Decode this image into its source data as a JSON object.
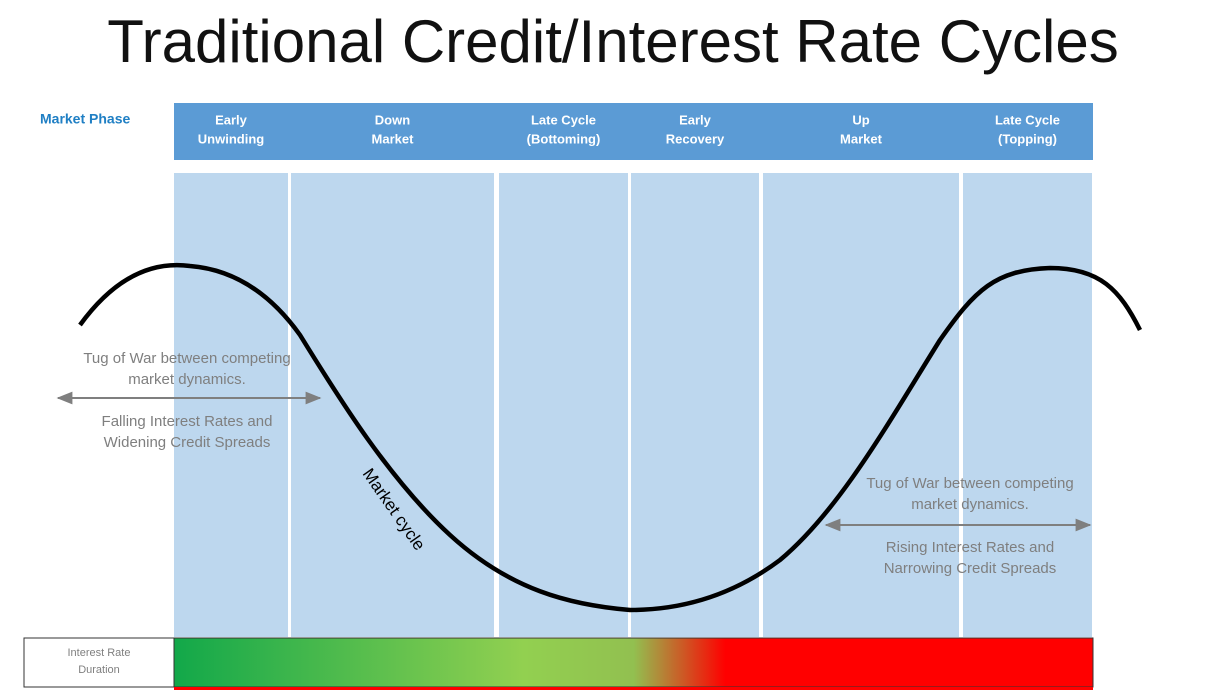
{
  "title": "Traditional Credit/Interest Rate Cycles",
  "phase_label": "Market Phase",
  "phases": [
    {
      "lines": [
        "Early",
        "Unwinding"
      ]
    },
    {
      "lines": [
        "Down",
        "Market"
      ]
    },
    {
      "lines": [
        "Late Cycle",
        "(Bottoming)"
      ]
    },
    {
      "lines": [
        "Early",
        "Recovery"
      ]
    },
    {
      "lines": [
        "Up",
        "Market"
      ]
    },
    {
      "lines": [
        "Late Cycle",
        "(Topping)"
      ]
    }
  ],
  "curve_label": "Market cycle",
  "left_annotation": {
    "top": [
      "Tug of War between competing",
      "market dynamics."
    ],
    "bottom": [
      "Falling Interest Rates and",
      "Widening Credit Spreads"
    ]
  },
  "right_annotation": {
    "top": [
      "Tug of War between competing",
      "market dynamics."
    ],
    "bottom": [
      "Rising Interest Rates and",
      "Narrowing Credit Spreads"
    ]
  },
  "duration_label": [
    "Interest Rate",
    "Duration"
  ]
}
